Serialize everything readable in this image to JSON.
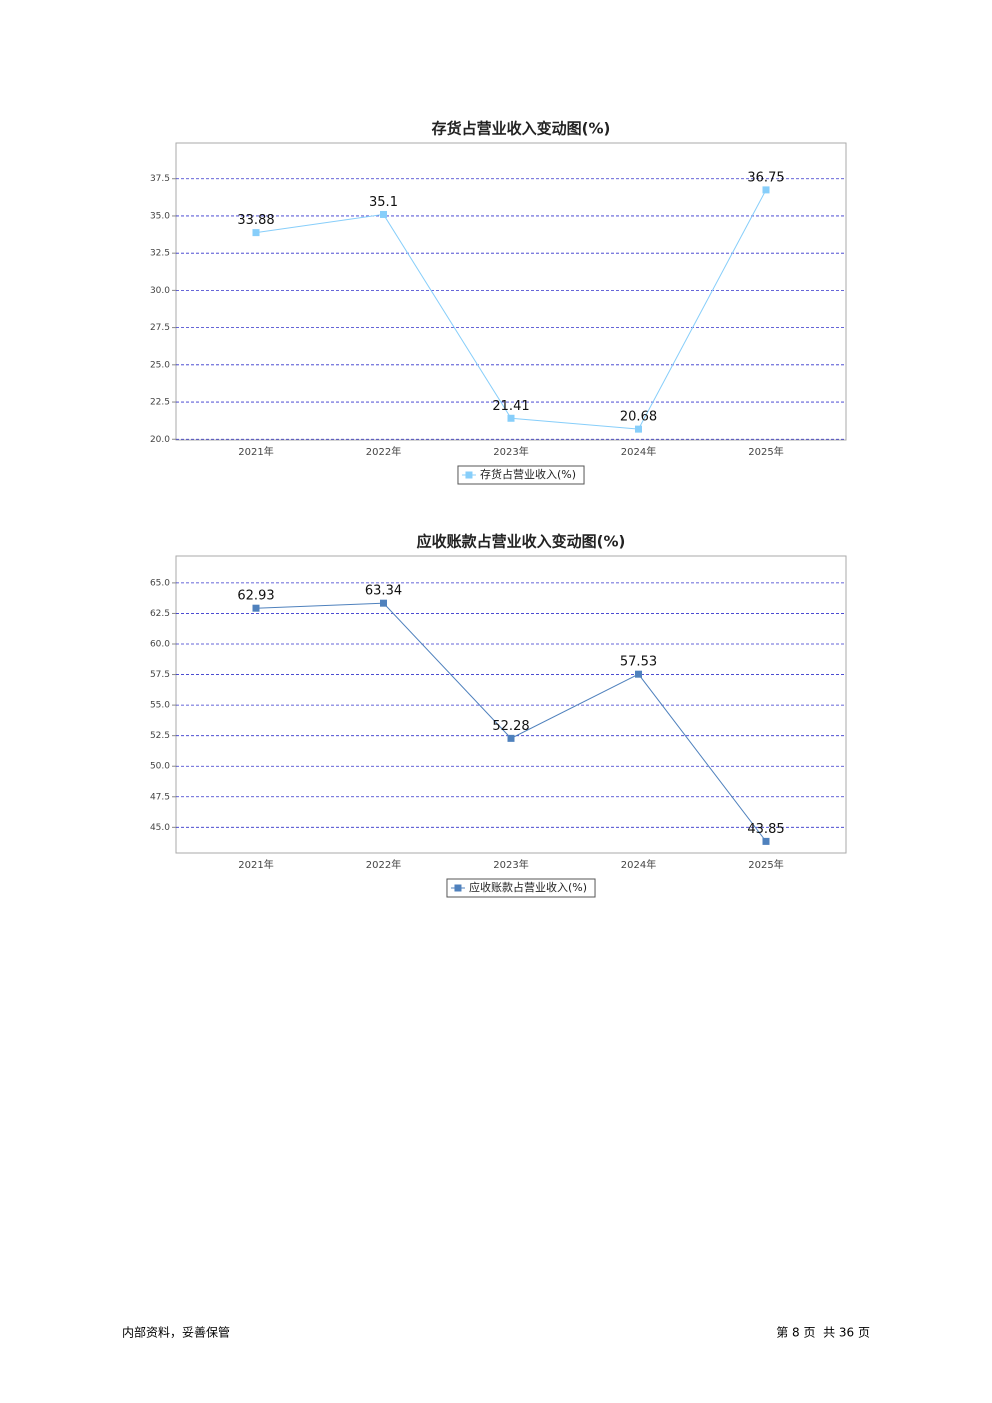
{
  "chart_data": [
    {
      "type": "line",
      "title": "存货占营业收入变动图(%)",
      "categories": [
        "2021年",
        "2022年",
        "2023年",
        "2024年",
        "2025年"
      ],
      "series": [
        {
          "name": "存货占营业收入(%)",
          "color": "#87cefa",
          "values": [
            33.88,
            35.1,
            21.41,
            20.68,
            36.75
          ]
        }
      ],
      "ylim": [
        19.95,
        39.9
      ],
      "yticks": [
        {
          "value": 20,
          "label": "20.0"
        },
        {
          "value": 22.5,
          "label": "22.5"
        },
        {
          "value": 25,
          "label": "25.0"
        },
        {
          "value": 27.5,
          "label": "27.5"
        },
        {
          "value": 30,
          "label": "30.0"
        },
        {
          "value": 32.5,
          "label": "32.5"
        },
        {
          "value": 35,
          "label": "35.0"
        },
        {
          "value": 37.5,
          "label": "37.5"
        }
      ],
      "grid": true
    },
    {
      "type": "line",
      "title": "应收账款占营业收入变动图(%)",
      "categories": [
        "2021年",
        "2022年",
        "2023年",
        "2024年",
        "2025年"
      ],
      "series": [
        {
          "name": "应收账款占营业收入(%)",
          "color": "#4f81bd",
          "values": [
            62.93,
            63.34,
            52.28,
            57.53,
            43.85
          ]
        }
      ],
      "ylim": [
        42.9,
        67.2
      ],
      "yticks": [
        {
          "value": 45,
          "label": "45.0"
        },
        {
          "value": 47.5,
          "label": "47.5"
        },
        {
          "value": 50,
          "label": "50.0"
        },
        {
          "value": 52.5,
          "label": "52.5"
        },
        {
          "value": 55,
          "label": "55.0"
        },
        {
          "value": 57.5,
          "label": "57.5"
        },
        {
          "value": 60,
          "label": "60.0"
        },
        {
          "value": 62.5,
          "label": "62.5"
        },
        {
          "value": 65,
          "label": "65.0"
        }
      ],
      "grid": true
    }
  ],
  "footer": {
    "left": "内部资料，妥善保管",
    "right": "第 8 页  共 36 页"
  }
}
